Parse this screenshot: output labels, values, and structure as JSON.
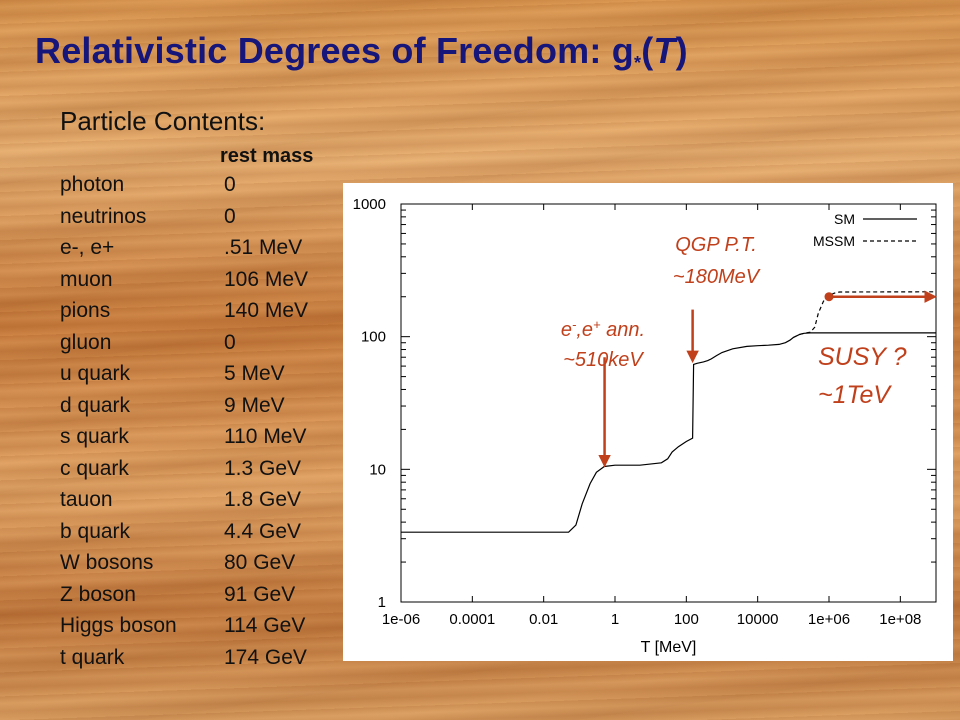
{
  "slide": {
    "title_main": "Relativistic Degrees of Freedom: g",
    "title_sub": "*",
    "title_open": "(",
    "title_var": "T",
    "title_close": ")",
    "contents_heading": "Particle Contents:",
    "rest_mass_header": "rest mass",
    "particles": [
      {
        "name": "photon",
        "mass": "0"
      },
      {
        "name": "neutrinos",
        "mass": "0"
      },
      {
        "name": "e-, e+",
        "mass": ".51 MeV"
      },
      {
        "name": "muon",
        "mass": "106 MeV"
      },
      {
        "name": "pions",
        "mass": "140 MeV"
      },
      {
        "name": "gluon",
        "mass": "0"
      },
      {
        "name": "u quark",
        "mass": "5 MeV"
      },
      {
        "name": "d quark",
        "mass": "9 MeV"
      },
      {
        "name": "s quark",
        "mass": "110 MeV"
      },
      {
        "name": "c quark",
        "mass": "1.3 GeV"
      },
      {
        "name": "tauon",
        "mass": "1.8 GeV"
      },
      {
        "name": "b quark",
        "mass": "4.4 GeV"
      },
      {
        "name": "W bosons",
        "mass": "80 GeV"
      },
      {
        "name": "Z boson",
        "mass": "91 GeV"
      },
      {
        "name": "Higgs boson",
        "mass": "114 GeV"
      },
      {
        "name": "t quark",
        "mass": "174 GeV"
      }
    ]
  },
  "colors": {
    "title": "#15157a",
    "annotation": "#c0401c",
    "text": "#111111",
    "plot_line": "#000000"
  },
  "chart_data": {
    "type": "line",
    "xlabel": "T [MeV]",
    "ylabel": "",
    "xscale": "log",
    "yscale": "log",
    "xlim": [
      1e-06,
      1000000000.0
    ],
    "ylim": [
      1,
      1000
    ],
    "x_ticks": [
      1e-06,
      0.0001,
      0.01,
      1,
      100,
      10000.0,
      1000000.0,
      100000000.0
    ],
    "x_tick_labels": [
      "1e-06",
      "0.0001",
      "0.01",
      "1",
      "100",
      "10000",
      "1e+06",
      "1e+08"
    ],
    "y_ticks": [
      1,
      10,
      100,
      1000
    ],
    "y_tick_labels": [
      "1",
      "10",
      "100",
      "1000"
    ],
    "legend_position": "top-right",
    "grid": false,
    "series": [
      {
        "name": "SM",
        "style": "solid",
        "x": [
          1e-06,
          0.05,
          0.08,
          0.12,
          0.2,
          0.3,
          0.5,
          1,
          5,
          20,
          30,
          40,
          60,
          100,
          150,
          160,
          200,
          300,
          400,
          500,
          700,
          1000,
          2000,
          5000,
          10000,
          20000,
          40000,
          60000,
          80000,
          100000,
          150000,
          200000,
          300000,
          1000000,
          1000000000.0
        ],
        "y": [
          3.36,
          3.36,
          3.8,
          5.5,
          7.8,
          9.5,
          10.5,
          10.75,
          10.75,
          11.2,
          12.0,
          13.5,
          14.8,
          16.2,
          17.2,
          61.75,
          63,
          64.5,
          66,
          68,
          72,
          76,
          81,
          84.5,
          85.5,
          86.2,
          87.5,
          90,
          94,
          98.5,
          104,
          106,
          106.75,
          106.75,
          106.75
        ]
      },
      {
        "name": "MSSM",
        "style": "dashed",
        "x": [
          100000,
          150000,
          200000,
          300000,
          400000,
          500000,
          700000,
          1000000,
          1500000,
          2000000,
          1000000000.0
        ],
        "y": [
          98.5,
          104,
          106,
          108,
          118,
          150,
          185,
          205,
          214,
          217,
          218
        ]
      }
    ],
    "annotations": [
      {
        "text_line1": "QGP P.T.",
        "text_line2": "~180MeV",
        "arrow_x": 150,
        "arrow_y_from": 160,
        "arrow_y_to": 66
      },
      {
        "text_line1": "e",
        "text_line1_sup_a": "-",
        "text_line1_mid": ",e",
        "text_line1_sup_b": "+",
        "text_line1_end": " ann.",
        "text_line2": "~510keV",
        "arrow_x": 0.51,
        "arrow_y_from": 70,
        "arrow_y_to": 10.8
      },
      {
        "text_line1": "SUSY ?",
        "text_line2": "~1TeV",
        "arrow_x_from": 1000000.0,
        "arrow_x_to": 900000000.0,
        "arrow_y": 200
      }
    ]
  }
}
